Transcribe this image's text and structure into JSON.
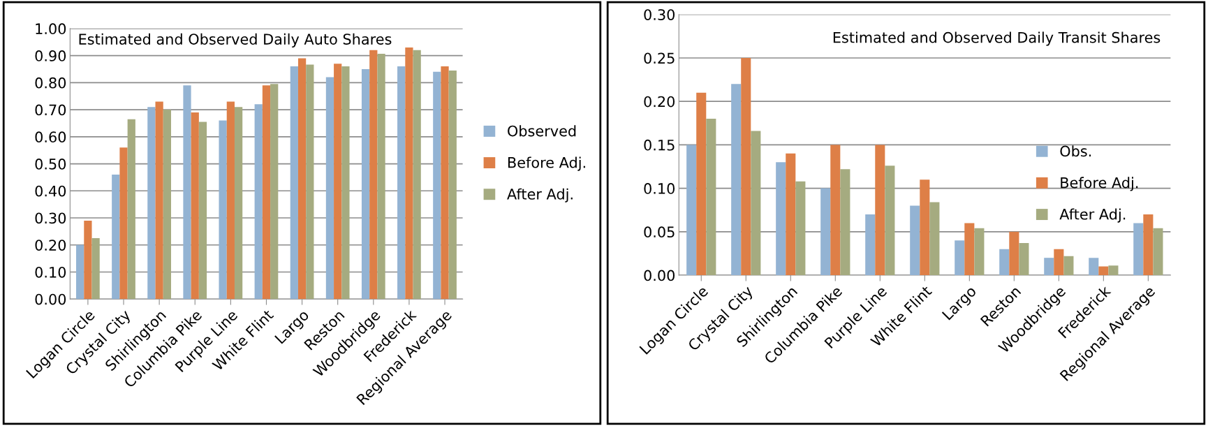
{
  "chart_data": [
    {
      "type": "bar",
      "title": "Estimated and Observed Daily Auto Shares",
      "categories": [
        "Logan Circle",
        "Crystal City",
        "Shirlington",
        "Columbia Pike",
        "Purple Line",
        "White Flint",
        "Largo",
        "Reston",
        "Woodbridge",
        "Frederick",
        "Regional Average"
      ],
      "series": [
        {
          "name": "Observed",
          "color": "#93b3d3",
          "values": [
            0.2,
            0.46,
            0.71,
            0.79,
            0.66,
            0.72,
            0.86,
            0.82,
            0.85,
            0.86,
            0.84
          ]
        },
        {
          "name": "Before Adj.",
          "color": "#de7f47",
          "values": [
            0.29,
            0.56,
            0.73,
            0.69,
            0.73,
            0.79,
            0.89,
            0.87,
            0.92,
            0.93,
            0.86
          ]
        },
        {
          "name": "After Adj.",
          "color": "#a5ab80",
          "values": [
            0.225,
            0.665,
            0.7,
            0.655,
            0.71,
            0.795,
            0.867,
            0.86,
            0.907,
            0.92,
            0.845
          ]
        }
      ],
      "ylim": [
        0,
        1.0
      ],
      "yticks": [
        {
          "value": 0,
          "label": "0.00"
        },
        {
          "value": 0.1,
          "label": "0.10"
        },
        {
          "value": 0.2,
          "label": "0.20"
        },
        {
          "value": 0.3,
          "label": "0.30"
        },
        {
          "value": 0.4,
          "label": "0.40"
        },
        {
          "value": 0.5,
          "label": "0.50"
        },
        {
          "value": 0.6,
          "label": "0.60"
        },
        {
          "value": 0.7,
          "label": "0.70"
        },
        {
          "value": 0.8,
          "label": "0.80"
        },
        {
          "value": 0.9,
          "label": "0.90"
        },
        {
          "value": 1.0,
          "label": "1.00"
        }
      ],
      "grid": "y",
      "legend": "right"
    },
    {
      "type": "bar",
      "title": "Estimated and Observed Daily Transit Shares",
      "categories": [
        "Logan Circle",
        "Crystal City",
        "Shirlington",
        "Columbia Pike",
        "Purple Line",
        "White Flint",
        "Largo",
        "Reston",
        "Woodbridge",
        "Frederick",
        "Regional Average"
      ],
      "series": [
        {
          "name": "Obs.",
          "color": "#93b3d3",
          "values": [
            0.15,
            0.22,
            0.13,
            0.1,
            0.07,
            0.08,
            0.04,
            0.03,
            0.02,
            0.02,
            0.06
          ]
        },
        {
          "name": "Before Adj.",
          "color": "#de7f47",
          "values": [
            0.21,
            0.25,
            0.14,
            0.15,
            0.15,
            0.11,
            0.06,
            0.05,
            0.03,
            0.01,
            0.07
          ]
        },
        {
          "name": "After Adj.",
          "color": "#a5ab80",
          "values": [
            0.18,
            0.166,
            0.108,
            0.122,
            0.126,
            0.084,
            0.054,
            0.037,
            0.022,
            0.011,
            0.054
          ]
        }
      ],
      "ylim": [
        0,
        0.3
      ],
      "yticks": [
        {
          "value": 0,
          "label": "0.00"
        },
        {
          "value": 0.05,
          "label": "0.05"
        },
        {
          "value": 0.1,
          "label": "0.10"
        },
        {
          "value": 0.15,
          "label": "0.15"
        },
        {
          "value": 0.2,
          "label": "0.20"
        },
        {
          "value": 0.25,
          "label": "0.25"
        },
        {
          "value": 0.3,
          "label": "0.30"
        }
      ],
      "grid": "y",
      "legend": "right"
    }
  ]
}
